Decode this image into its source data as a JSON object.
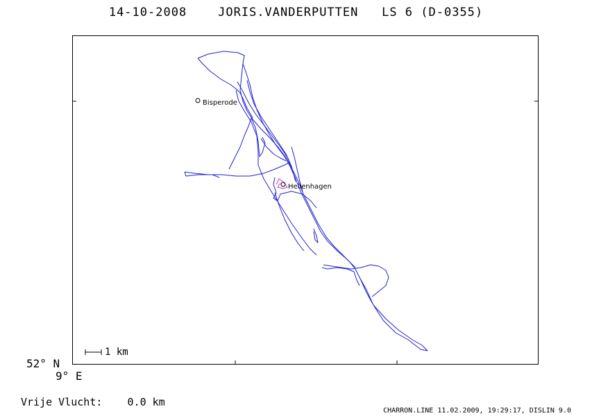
{
  "header": {
    "date": "14-10-2008",
    "pilot": "JORIS.VANDERPUTTEN",
    "glider": "LS 6 (D-0355)"
  },
  "map": {
    "origin_lat": "52° N",
    "origin_lon": "9° E",
    "scale_label": "1 km",
    "track_color": "#1f1fd0",
    "task_color": "#cc33cc",
    "waypoints": [
      {
        "name": "Bisperode"
      },
      {
        "name": "Hellenhagen"
      }
    ]
  },
  "footer": {
    "free_flight_label": "Vrije Vlucht:",
    "free_flight_value": "0.0 km",
    "generator": "CHARRON.LINE 11.02.2009, 19:29:17, DISLIN 9.0"
  }
}
